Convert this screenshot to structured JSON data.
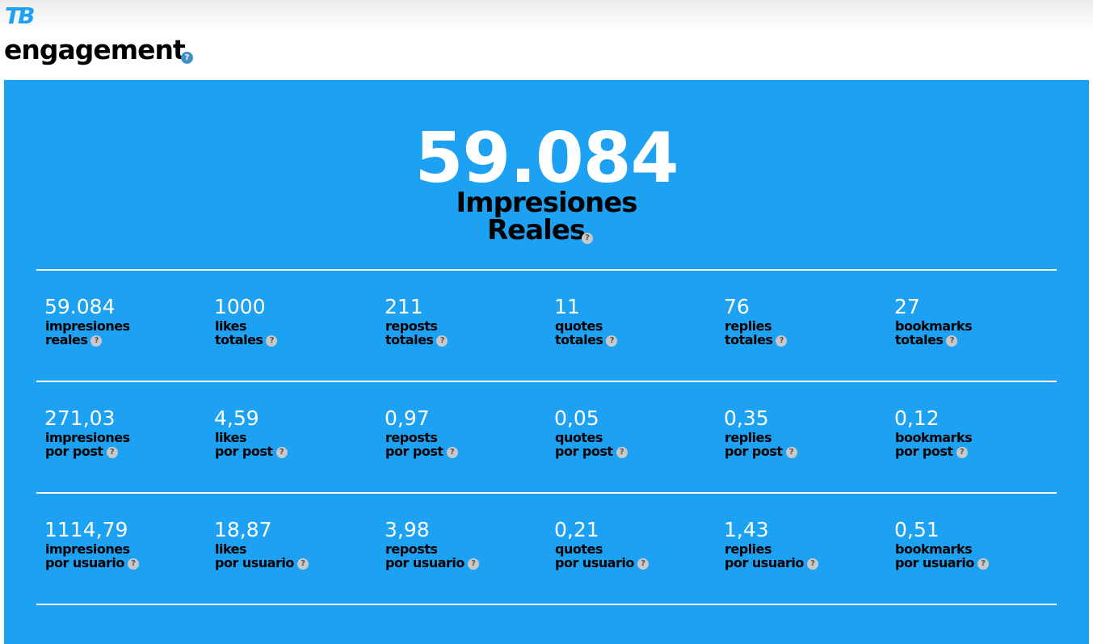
{
  "logo": "TB",
  "section_title": "engagement",
  "hero": {
    "value": "59.084",
    "label_line1": "Impresiones",
    "label_line2": "Reales"
  },
  "help_glyph": "?",
  "rows": [
    {
      "cells": [
        {
          "value": "59.084",
          "l1": "impresiones",
          "l2": "reales"
        },
        {
          "value": "1000",
          "l1": "likes",
          "l2": "totales"
        },
        {
          "value": "211",
          "l1": "reposts",
          "l2": "totales"
        },
        {
          "value": "11",
          "l1": "quotes",
          "l2": "totales"
        },
        {
          "value": "76",
          "l1": "replies",
          "l2": "totales"
        },
        {
          "value": "27",
          "l1": "bookmarks",
          "l2": "totales"
        }
      ]
    },
    {
      "cells": [
        {
          "value": "271,03",
          "l1": "impresiones",
          "l2": "por post"
        },
        {
          "value": "4,59",
          "l1": "likes",
          "l2": "por post"
        },
        {
          "value": "0,97",
          "l1": "reposts",
          "l2": "por post"
        },
        {
          "value": "0,05",
          "l1": "quotes",
          "l2": "por post"
        },
        {
          "value": "0,35",
          "l1": "replies",
          "l2": "por post"
        },
        {
          "value": "0,12",
          "l1": "bookmarks",
          "l2": "por post"
        }
      ]
    },
    {
      "cells": [
        {
          "value": "1114,79",
          "l1": "impresiones",
          "l2": "por usuario"
        },
        {
          "value": "18,87",
          "l1": "likes",
          "l2": "por usuario"
        },
        {
          "value": "3,98",
          "l1": "reposts",
          "l2": "por usuario"
        },
        {
          "value": "0,21",
          "l1": "quotes",
          "l2": "por usuario"
        },
        {
          "value": "1,43",
          "l1": "replies",
          "l2": "por usuario"
        },
        {
          "value": "0,51",
          "l1": "bookmarks",
          "l2": "por usuario"
        }
      ]
    }
  ],
  "colors": {
    "panel": "#1da1f2",
    "logo": "#1da1f2",
    "help_blue": "#3f8fc8"
  }
}
